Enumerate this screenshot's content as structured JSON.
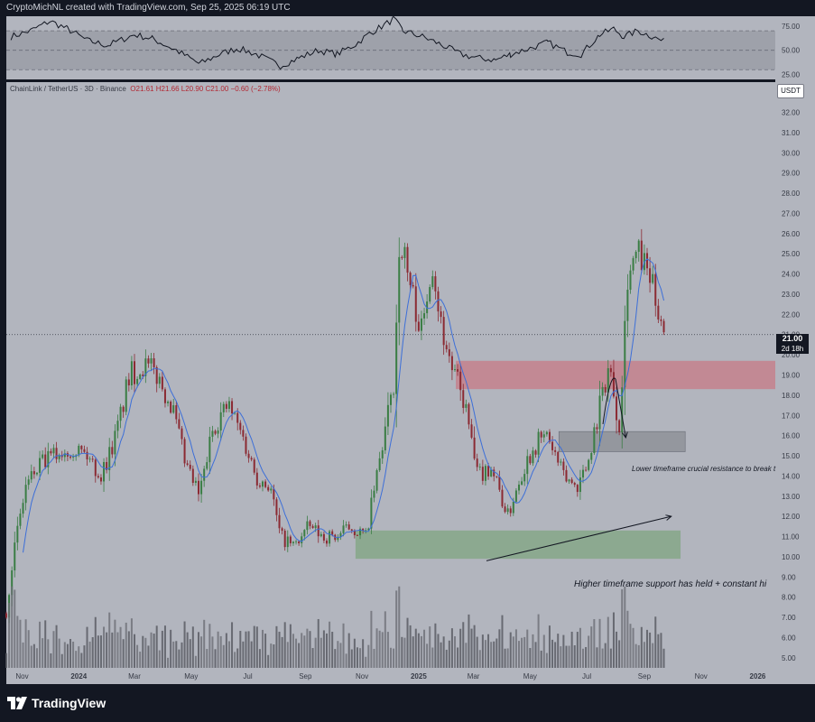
{
  "header": {
    "text": "CryptoMichNL created with TradingView.com, Sep 25, 2025 06:19 UTC"
  },
  "legend": {
    "symbol": "ChainLink / TetherUS · 3D · Binance",
    "open": "O21.61",
    "high": "H21.66",
    "low": "L20.90",
    "close": "C21.00",
    "change": "−0.60 (−2.78%)"
  },
  "currency_button": "USDT",
  "last_price": {
    "value": "21.00",
    "countdown": "2d 18h"
  },
  "annotations": {
    "lower_tf": "Lower timeframe crucial resistance to break t",
    "higher_tf": "Higher timeframe support has held + constant hi"
  },
  "footer": {
    "brand": "TradingView"
  },
  "colors": {
    "background": "#b2b5be",
    "up": "#3a7d44",
    "down": "#8b2a33",
    "ma": "#3d6fd8",
    "rsi": "#131722",
    "resistance_zone": "#c77b85",
    "support_zone": "#7fa680",
    "retest_zone": "#8f9299"
  },
  "chart_data": [
    {
      "type": "line",
      "panel": "RSI",
      "y_ticks": [
        "75.00",
        "50.00",
        "25.00"
      ],
      "ylim": [
        20,
        85
      ],
      "band": [
        30,
        70
      ],
      "x": [
        "2023-10-20",
        "2023-11-10",
        "2023-12-01",
        "2023-12-20",
        "2024-01-10",
        "2024-02-01",
        "2024-03-01",
        "2024-03-20",
        "2024-04-15",
        "2024-05-10",
        "2024-06-01",
        "2024-06-20",
        "2024-07-10",
        "2024-08-05",
        "2024-08-25",
        "2024-09-15",
        "2024-10-05",
        "2024-10-25",
        "2024-11-10",
        "2024-11-25",
        "2024-12-05",
        "2024-12-15",
        "2025-01-05",
        "2025-01-25",
        "2025-02-15",
        "2025-03-05",
        "2025-03-25",
        "2025-04-10",
        "2025-05-01",
        "2025-05-20",
        "2025-06-10",
        "2025-06-25",
        "2025-07-15",
        "2025-07-30",
        "2025-08-10",
        "2025-08-25",
        "2025-09-10",
        "2025-09-24"
      ],
      "values": [
        64,
        70,
        80,
        72,
        60,
        55,
        66,
        62,
        50,
        36,
        46,
        52,
        46,
        34,
        42,
        50,
        46,
        56,
        68,
        76,
        82,
        70,
        64,
        56,
        46,
        42,
        40,
        46,
        52,
        58,
        48,
        46,
        66,
        72,
        64,
        70,
        64,
        58
      ]
    },
    {
      "type": "candlestick",
      "panel": "price",
      "title": "ChainLink / TetherUS · 3D · Binance",
      "ylabel": "USDT",
      "ylim": [
        4.5,
        33.5
      ],
      "y_ticks": [
        "32.00",
        "31.00",
        "30.00",
        "29.00",
        "28.00",
        "27.00",
        "26.00",
        "25.00",
        "24.00",
        "23.00",
        "22.00",
        "21.00",
        "20.00",
        "19.00",
        "18.00",
        "17.00",
        "16.00",
        "15.00",
        "14.00",
        "13.00",
        "12.00",
        "11.00",
        "10.00",
        "9.00",
        "8.00",
        "7.00",
        "6.00",
        "5.00"
      ],
      "x_ticks": [
        "Nov",
        "2024",
        "Mar",
        "May",
        "Jul",
        "Sep",
        "Nov",
        "2025",
        "Mar",
        "May",
        "Jul",
        "Sep",
        "Nov",
        "2026"
      ],
      "x_tick_dates": [
        "2023-11-01",
        "2024-01-01",
        "2024-03-01",
        "2024-05-01",
        "2024-07-01",
        "2024-09-01",
        "2024-11-01",
        "2025-01-01",
        "2025-03-01",
        "2025-05-01",
        "2025-07-01",
        "2025-09-01",
        "2025-11-01",
        "2026-01-01"
      ],
      "x_range": [
        "2023-10-15",
        "2026-01-20"
      ],
      "path_dates": [
        "2023-10-15",
        "2023-10-22",
        "2023-11-05",
        "2023-11-20",
        "2023-12-05",
        "2023-12-25",
        "2024-01-10",
        "2024-01-25",
        "2024-02-10",
        "2024-02-25",
        "2024-03-10",
        "2024-03-25",
        "2024-04-10",
        "2024-04-25",
        "2024-05-10",
        "2024-05-25",
        "2024-06-10",
        "2024-06-25",
        "2024-07-10",
        "2024-07-25",
        "2024-08-05",
        "2024-08-20",
        "2024-09-05",
        "2024-09-20",
        "2024-10-05",
        "2024-10-20",
        "2024-11-05",
        "2024-11-15",
        "2024-11-25",
        "2024-12-05",
        "2024-12-12",
        "2024-12-20",
        "2025-01-05",
        "2025-01-15",
        "2025-01-25",
        "2025-02-05",
        "2025-02-20",
        "2025-03-05",
        "2025-03-20",
        "2025-04-07",
        "2025-04-20",
        "2025-05-05",
        "2025-05-20",
        "2025-06-05",
        "2025-06-20",
        "2025-07-01",
        "2025-07-15",
        "2025-07-25",
        "2025-08-05",
        "2025-08-14",
        "2025-08-25",
        "2025-09-05",
        "2025-09-15",
        "2025-09-24"
      ],
      "path_closes": [
        7.2,
        10.0,
        13.5,
        14.5,
        15.0,
        15.5,
        15.0,
        14.0,
        16.0,
        19.0,
        19.5,
        19.0,
        17.5,
        14.5,
        13.0,
        16.5,
        17.5,
        16.0,
        14.0,
        13.5,
        11.0,
        10.5,
        11.5,
        11.0,
        11.0,
        11.5,
        11.0,
        13.5,
        16.0,
        18.5,
        26.0,
        24.0,
        21.0,
        25.0,
        21.5,
        19.5,
        17.5,
        14.0,
        14.5,
        12.0,
        14.0,
        15.5,
        16.0,
        14.0,
        13.5,
        14.5,
        17.5,
        19.5,
        16.5,
        24.0,
        25.0,
        24.0,
        22.5,
        21.0
      ],
      "volume_ylim": [
        0,
        10
      ],
      "moving_average": {
        "color": "#3d6fd8"
      },
      "last_close": 21.0,
      "zones": [
        {
          "label": "resistance",
          "from": "2025-02-10",
          "to": "2026-01-20",
          "low": 18.3,
          "high": 19.7
        },
        {
          "label": "retest",
          "from": "2025-06-01",
          "to": "2025-10-15",
          "low": 15.2,
          "high": 16.2
        },
        {
          "label": "support",
          "from": "2024-10-25",
          "to": "2025-10-10",
          "low": 9.9,
          "high": 11.3
        }
      ],
      "arrows": [
        {
          "from": [
            "2025-03-15",
            9.8
          ],
          "to": [
            "2025-09-30",
            12.0
          ]
        },
        {
          "from": [
            "2025-08-01",
            18.8
          ],
          "to": [
            "2025-08-12",
            15.9
          ]
        }
      ]
    }
  ]
}
